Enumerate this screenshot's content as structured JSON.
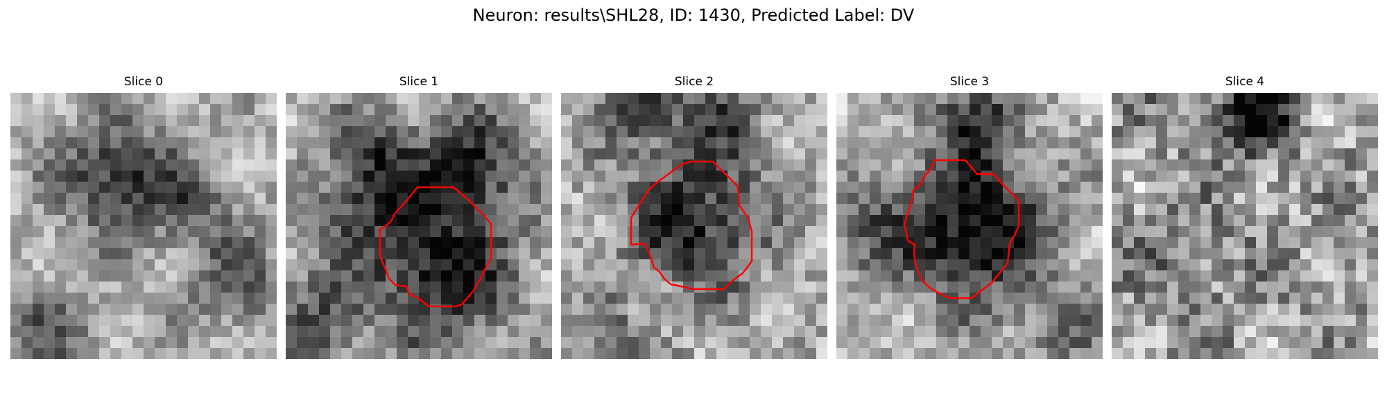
{
  "figure": {
    "title": "Neuron: results\\SHL28, ID: 1430, Predicted Label: DV"
  },
  "panels": [
    {
      "label": "Slice 0",
      "has_contour": false,
      "contour_color": "#ff0000"
    },
    {
      "label": "Slice 1",
      "has_contour": true,
      "contour_color": "#ff0000"
    },
    {
      "label": "Slice 2",
      "has_contour": true,
      "contour_color": "#ff0000"
    },
    {
      "label": "Slice 3",
      "has_contour": true,
      "contour_color": "#ff0000"
    },
    {
      "label": "Slice 4",
      "has_contour": false,
      "contour_color": "#ff0000"
    }
  ],
  "colors": {
    "contour": "#ff0000",
    "background": "#ffffff",
    "colormap": "gray"
  }
}
